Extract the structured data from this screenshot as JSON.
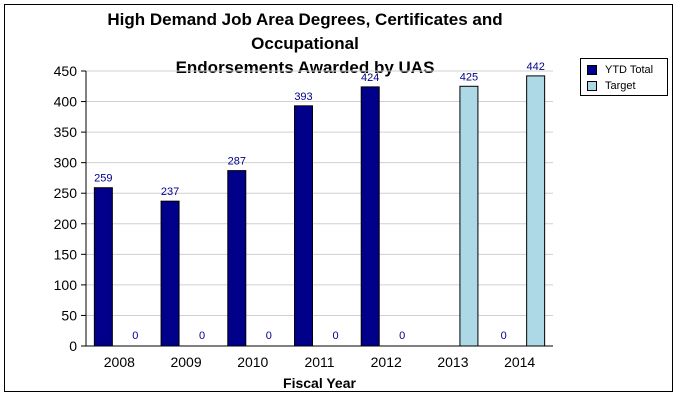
{
  "chart_data": {
    "type": "bar",
    "title_line1": "High Demand Job Area Degrees, Certificates and Occupational",
    "title_line2": "Endorsements Awarded by UAS",
    "xlabel": "Fiscal Year",
    "ylabel": "",
    "ylim": [
      0,
      450
    ],
    "yticks": [
      0,
      50,
      100,
      150,
      200,
      250,
      300,
      350,
      400,
      450
    ],
    "grid": true,
    "legend_position": "top-right",
    "categories": [
      "2008",
      "2009",
      "2010",
      "2011",
      "2012",
      "2013",
      "2014"
    ],
    "series": [
      {
        "name": "YTD Total",
        "color": "#00008b",
        "values": [
          259,
          237,
          287,
          393,
          424,
          null,
          0
        ],
        "labels": [
          "259",
          "237",
          "287",
          "393",
          "424",
          "",
          "0"
        ]
      },
      {
        "name": "Target",
        "color": "#add8e6",
        "values": [
          0,
          0,
          0,
          0,
          0,
          425,
          442
        ],
        "labels": [
          "0",
          "0",
          "0",
          "0",
          "0",
          "425",
          "442"
        ]
      }
    ]
  }
}
